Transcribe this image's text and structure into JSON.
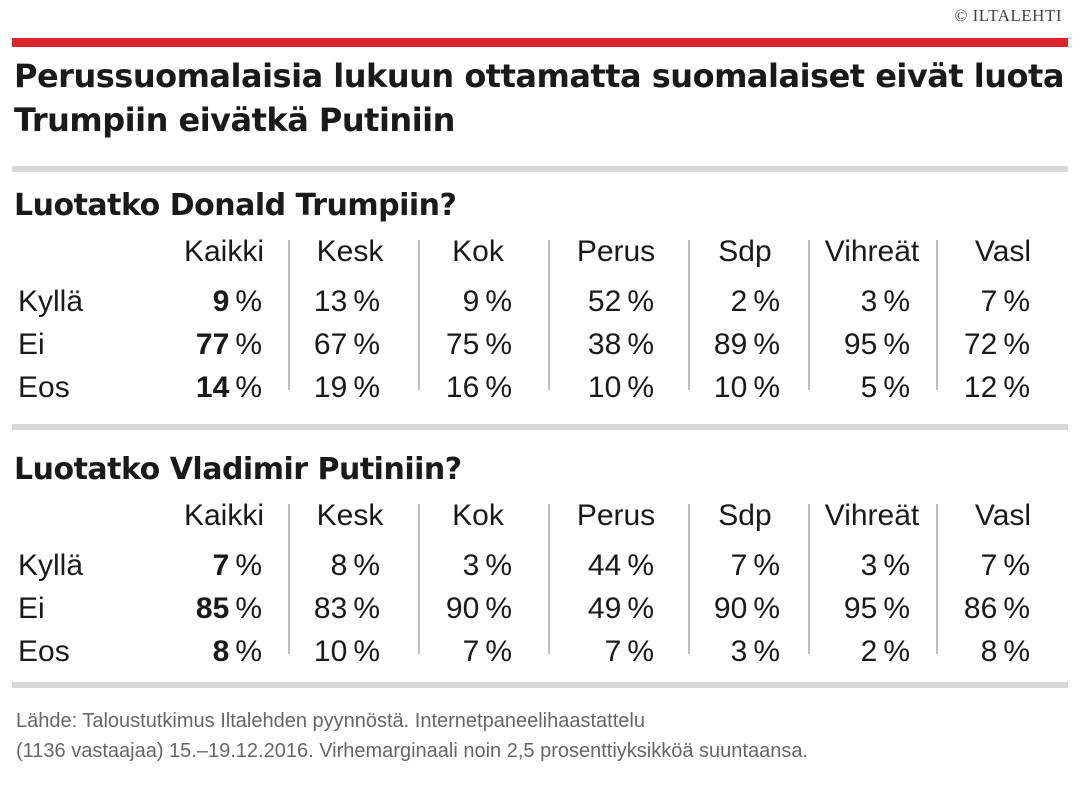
{
  "copyright": "© ILTALEHTI",
  "headline": "Perussuomalaisia lukuun ottamatta suomalaiset eivät luota Trumpiin eivätkä Putiniin",
  "columns": [
    "Kaikki",
    "Kesk",
    "Kok",
    "Perus",
    "Sdp",
    "Vihreät",
    "Vasl"
  ],
  "sections": [
    {
      "question": "Luotatko Donald Trumpiin?",
      "rows": [
        {
          "label": "Kyllä",
          "values": [
            "9",
            "13",
            "9",
            "52",
            "2",
            "3",
            "7"
          ]
        },
        {
          "label": "Ei",
          "values": [
            "77",
            "67",
            "75",
            "38",
            "89",
            "95",
            "72"
          ]
        },
        {
          "label": "Eos",
          "values": [
            "14",
            "19",
            "16",
            "10",
            "10",
            "5",
            "12"
          ]
        }
      ]
    },
    {
      "question": "Luotatko Vladimir Putiniin?",
      "rows": [
        {
          "label": "Kyllä",
          "values": [
            "7",
            "8",
            "3",
            "44",
            "7",
            "3",
            "7"
          ]
        },
        {
          "label": "Ei",
          "values": [
            "85",
            "83",
            "90",
            "49",
            "90",
            "95",
            "86"
          ]
        },
        {
          "label": "Eos",
          "values": [
            "8",
            "10",
            "7",
            "7",
            "3",
            "2",
            "8"
          ]
        }
      ]
    }
  ],
  "unit": "%",
  "source": {
    "line1": "Lähde: Taloustutkimus Iltalehden pyynnöstä. Internetpaneelihaastattelu",
    "line2": "(1136 vastaajaa) 15.–19.12.2016. Virhemarginaali noin 2,5 prosenttiyksikköä suuntaansa."
  }
}
